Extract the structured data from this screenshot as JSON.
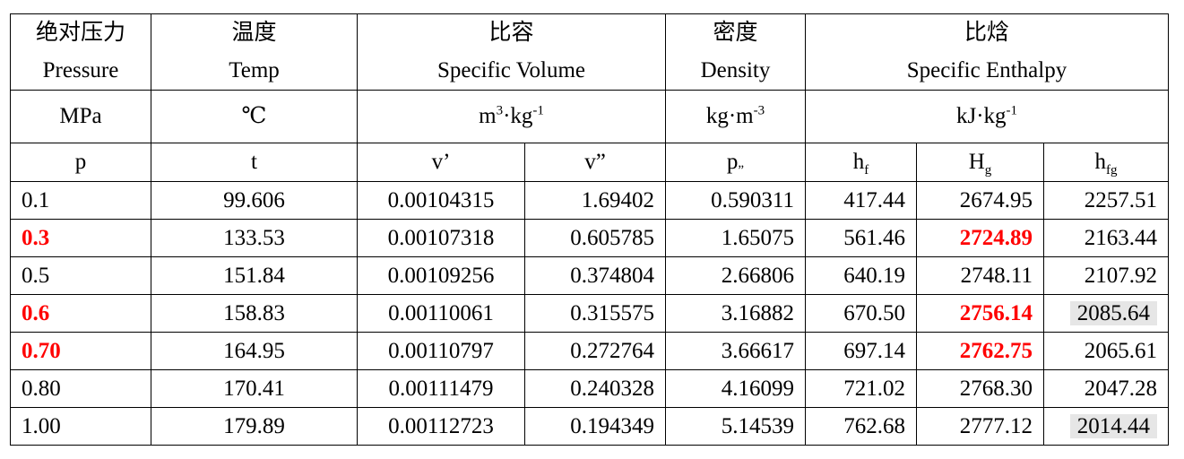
{
  "header": {
    "pressure": {
      "zh": "绝对压力",
      "en": "Pressure",
      "unit": "MPa"
    },
    "temp": {
      "zh": "温度",
      "en": "Temp",
      "unit": "℃"
    },
    "volume": {
      "zh": "比容",
      "en": "Specific Volume"
    },
    "density": {
      "zh": "密度",
      "en": "Density"
    },
    "enthalpy": {
      "zh": "比焓",
      "en": "Specific Enthalpy"
    },
    "units": {
      "volume": [
        "m",
        "3",
        "·kg",
        "-1"
      ],
      "density": [
        "kg·m",
        "-3"
      ],
      "enthalpy": [
        "kJ·kg",
        "-1"
      ]
    },
    "symbols": {
      "p": "p",
      "t": "t",
      "v1": "v’",
      "v2": "v”",
      "rho": [
        "p",
        "”"
      ],
      "hf": [
        "h",
        "f"
      ],
      "hg": [
        "H",
        "g"
      ],
      "hfg": [
        "h",
        "fg"
      ]
    }
  },
  "rows": [
    {
      "p": "0.1",
      "t": "99.606",
      "v1": "0.00104315",
      "v2": "1.69402",
      "rho": "0.590311",
      "hf": "417.44",
      "hg": "2674.95",
      "hfg": "2257.51"
    },
    {
      "p": "0.3",
      "t": "133.53",
      "v1": "0.00107318",
      "v2": "0.605785",
      "rho": "1.65075",
      "hf": "561.46",
      "hg": "2724.89",
      "hfg": "2163.44"
    },
    {
      "p": "0.5",
      "t": "151.84",
      "v1": "0.00109256",
      "v2": "0.374804",
      "rho": "2.66806",
      "hf": "640.19",
      "hg": "2748.11",
      "hfg": "2107.92"
    },
    {
      "p": "0.6",
      "t": "158.83",
      "v1": "0.00110061",
      "v2": "0.315575",
      "rho": "3.16882",
      "hf": "670.50",
      "hg": "2756.14",
      "hfg": "2085.64"
    },
    {
      "p": "0.70",
      "t": "164.95",
      "v1": "0.00110797",
      "v2": "0.272764",
      "rho": "3.66617",
      "hf": "697.14",
      "hg": "2762.75",
      "hfg": "2065.61"
    },
    {
      "p": "0.80",
      "t": "170.41",
      "v1": "0.00111479",
      "v2": "0.240328",
      "rho": "4.16099",
      "hf": "721.02",
      "hg": "2768.30",
      "hfg": "2047.28"
    },
    {
      "p": "1.00",
      "t": "179.89",
      "v1": "0.00112723",
      "v2": "0.194349",
      "rho": "5.14539",
      "hf": "762.68",
      "hg": "2777.12",
      "hfg": "2014.44"
    }
  ],
  "highlight": {
    "red_color": "#ff0000",
    "shade_color": "#e6e6e6"
  }
}
